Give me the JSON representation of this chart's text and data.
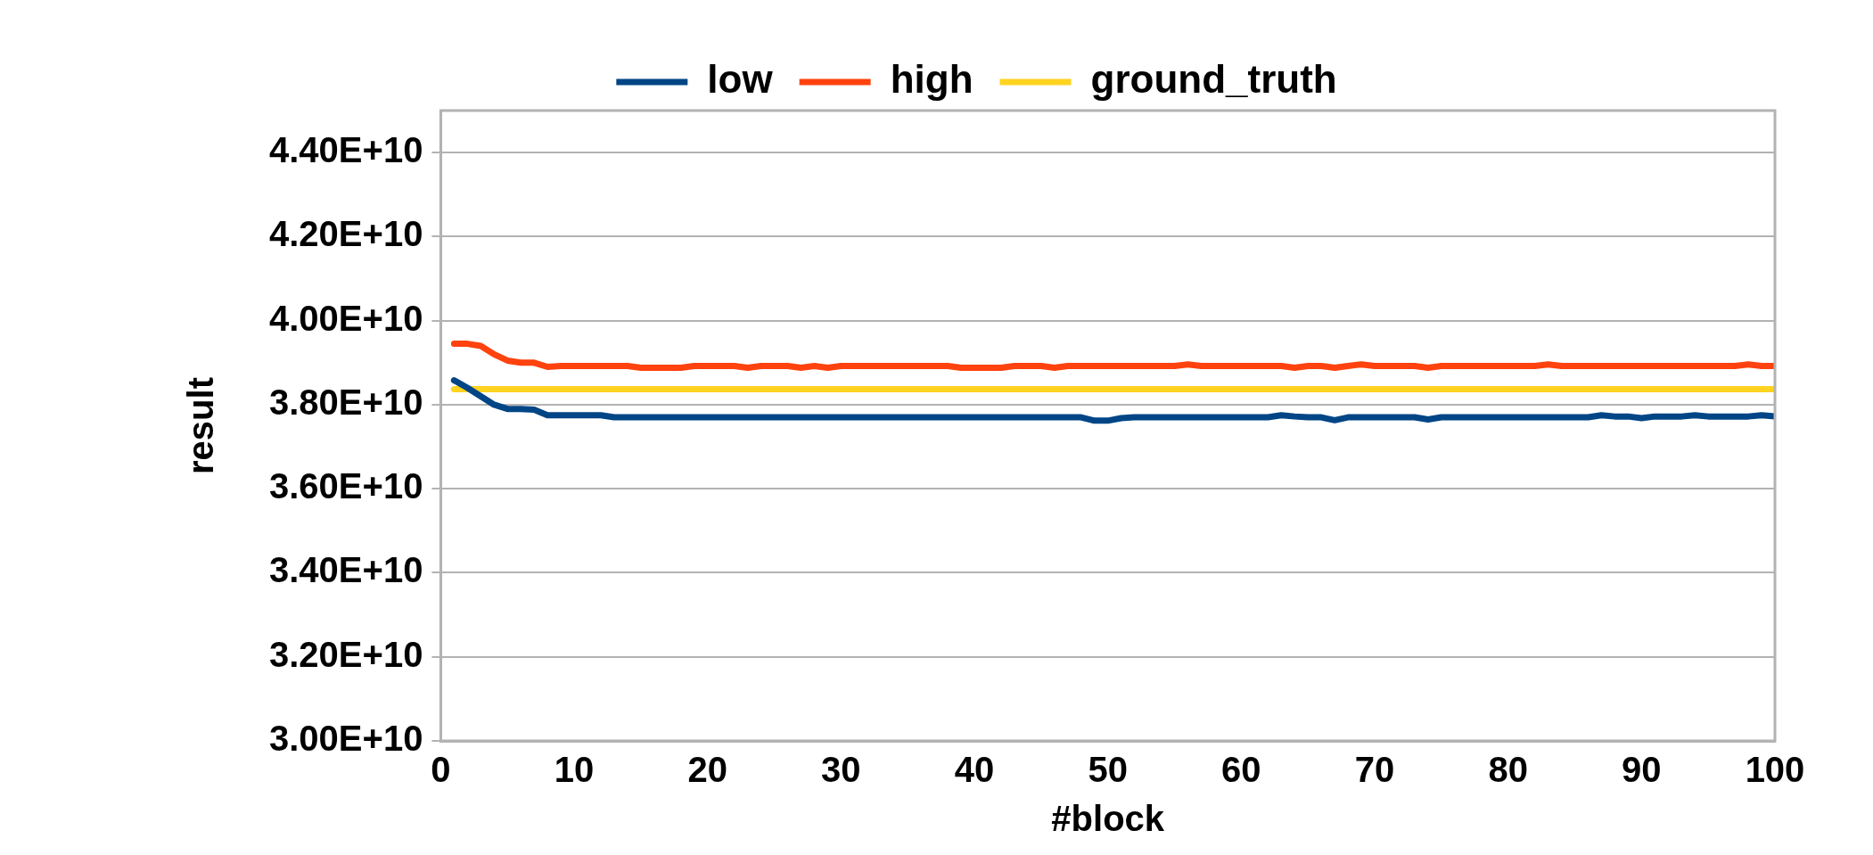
{
  "chart_data": {
    "type": "line",
    "xlabel": "#block",
    "ylabel": "result",
    "x": [
      1,
      2,
      3,
      4,
      5,
      6,
      7,
      8,
      9,
      10,
      11,
      12,
      13,
      14,
      15,
      16,
      17,
      18,
      19,
      20,
      21,
      22,
      23,
      24,
      25,
      26,
      27,
      28,
      29,
      30,
      31,
      32,
      33,
      34,
      35,
      36,
      37,
      38,
      39,
      40,
      41,
      42,
      43,
      44,
      45,
      46,
      47,
      48,
      49,
      50,
      51,
      52,
      53,
      54,
      55,
      56,
      57,
      58,
      59,
      60,
      61,
      62,
      63,
      64,
      65,
      66,
      67,
      68,
      69,
      70,
      71,
      72,
      73,
      74,
      75,
      76,
      77,
      78,
      79,
      80,
      81,
      82,
      83,
      84,
      85,
      86,
      87,
      88,
      89,
      90,
      91,
      92,
      93,
      94,
      95,
      96,
      97,
      98,
      99,
      100
    ],
    "series": [
      {
        "name": "low",
        "color": "#004586",
        "values": [
          38580000000.0,
          38400000000.0,
          38200000000.0,
          38000000000.0,
          37900000000.0,
          37900000000.0,
          37880000000.0,
          37750000000.0,
          37750000000.0,
          37750000000.0,
          37750000000.0,
          37750000000.0,
          37700000000.0,
          37700000000.0,
          37700000000.0,
          37700000000.0,
          37700000000.0,
          37700000000.0,
          37700000000.0,
          37700000000.0,
          37700000000.0,
          37700000000.0,
          37700000000.0,
          37700000000.0,
          37700000000.0,
          37700000000.0,
          37700000000.0,
          37700000000.0,
          37700000000.0,
          37700000000.0,
          37700000000.0,
          37700000000.0,
          37700000000.0,
          37700000000.0,
          37700000000.0,
          37700000000.0,
          37700000000.0,
          37700000000.0,
          37700000000.0,
          37700000000.0,
          37700000000.0,
          37700000000.0,
          37700000000.0,
          37700000000.0,
          37700000000.0,
          37700000000.0,
          37700000000.0,
          37700000000.0,
          37620000000.0,
          37620000000.0,
          37680000000.0,
          37700000000.0,
          37700000000.0,
          37700000000.0,
          37700000000.0,
          37700000000.0,
          37700000000.0,
          37700000000.0,
          37700000000.0,
          37700000000.0,
          37700000000.0,
          37700000000.0,
          37750000000.0,
          37720000000.0,
          37700000000.0,
          37700000000.0,
          37630000000.0,
          37700000000.0,
          37700000000.0,
          37700000000.0,
          37700000000.0,
          37700000000.0,
          37700000000.0,
          37650000000.0,
          37700000000.0,
          37700000000.0,
          37700000000.0,
          37700000000.0,
          37700000000.0,
          37700000000.0,
          37700000000.0,
          37700000000.0,
          37700000000.0,
          37700000000.0,
          37700000000.0,
          37700000000.0,
          37750000000.0,
          37720000000.0,
          37720000000.0,
          37680000000.0,
          37720000000.0,
          37720000000.0,
          37720000000.0,
          37750000000.0,
          37720000000.0,
          37720000000.0,
          37720000000.0,
          37720000000.0,
          37750000000.0,
          37720000000.0
        ]
      },
      {
        "name": "high",
        "color": "#ff420e",
        "values": [
          39450000000.0,
          39450000000.0,
          39400000000.0,
          39200000000.0,
          39050000000.0,
          39000000000.0,
          39000000000.0,
          38900000000.0,
          38920000000.0,
          38920000000.0,
          38920000000.0,
          38920000000.0,
          38920000000.0,
          38920000000.0,
          38880000000.0,
          38880000000.0,
          38880000000.0,
          38880000000.0,
          38920000000.0,
          38920000000.0,
          38920000000.0,
          38920000000.0,
          38880000000.0,
          38920000000.0,
          38920000000.0,
          38920000000.0,
          38880000000.0,
          38920000000.0,
          38880000000.0,
          38920000000.0,
          38920000000.0,
          38920000000.0,
          38920000000.0,
          38920000000.0,
          38920000000.0,
          38920000000.0,
          38920000000.0,
          38920000000.0,
          38880000000.0,
          38880000000.0,
          38880000000.0,
          38880000000.0,
          38920000000.0,
          38920000000.0,
          38920000000.0,
          38880000000.0,
          38920000000.0,
          38920000000.0,
          38920000000.0,
          38920000000.0,
          38920000000.0,
          38920000000.0,
          38920000000.0,
          38920000000.0,
          38920000000.0,
          38960000000.0,
          38920000000.0,
          38920000000.0,
          38920000000.0,
          38920000000.0,
          38920000000.0,
          38920000000.0,
          38920000000.0,
          38880000000.0,
          38920000000.0,
          38920000000.0,
          38880000000.0,
          38920000000.0,
          38960000000.0,
          38920000000.0,
          38920000000.0,
          38920000000.0,
          38920000000.0,
          38880000000.0,
          38920000000.0,
          38920000000.0,
          38920000000.0,
          38920000000.0,
          38920000000.0,
          38920000000.0,
          38920000000.0,
          38920000000.0,
          38960000000.0,
          38920000000.0,
          38920000000.0,
          38920000000.0,
          38920000000.0,
          38920000000.0,
          38920000000.0,
          38920000000.0,
          38920000000.0,
          38920000000.0,
          38920000000.0,
          38920000000.0,
          38920000000.0,
          38920000000.0,
          38920000000.0,
          38960000000.0,
          38920000000.0,
          38920000000.0
        ]
      },
      {
        "name": "ground_truth",
        "color": "#ffd320",
        "values": [
          38370000000.0,
          38370000000.0,
          38370000000.0,
          38370000000.0,
          38370000000.0,
          38370000000.0,
          38370000000.0,
          38370000000.0,
          38370000000.0,
          38370000000.0,
          38370000000.0,
          38370000000.0,
          38370000000.0,
          38370000000.0,
          38370000000.0,
          38370000000.0,
          38370000000.0,
          38370000000.0,
          38370000000.0,
          38370000000.0,
          38370000000.0,
          38370000000.0,
          38370000000.0,
          38370000000.0,
          38370000000.0,
          38370000000.0,
          38370000000.0,
          38370000000.0,
          38370000000.0,
          38370000000.0,
          38370000000.0,
          38370000000.0,
          38370000000.0,
          38370000000.0,
          38370000000.0,
          38370000000.0,
          38370000000.0,
          38370000000.0,
          38370000000.0,
          38370000000.0,
          38370000000.0,
          38370000000.0,
          38370000000.0,
          38370000000.0,
          38370000000.0,
          38370000000.0,
          38370000000.0,
          38370000000.0,
          38370000000.0,
          38370000000.0,
          38370000000.0,
          38370000000.0,
          38370000000.0,
          38370000000.0,
          38370000000.0,
          38370000000.0,
          38370000000.0,
          38370000000.0,
          38370000000.0,
          38370000000.0,
          38370000000.0,
          38370000000.0,
          38370000000.0,
          38370000000.0,
          38370000000.0,
          38370000000.0,
          38370000000.0,
          38370000000.0,
          38370000000.0,
          38370000000.0,
          38370000000.0,
          38370000000.0,
          38370000000.0,
          38370000000.0,
          38370000000.0,
          38370000000.0,
          38370000000.0,
          38370000000.0,
          38370000000.0,
          38370000000.0,
          38370000000.0,
          38370000000.0,
          38370000000.0,
          38370000000.0,
          38370000000.0,
          38370000000.0,
          38370000000.0,
          38370000000.0,
          38370000000.0,
          38370000000.0,
          38370000000.0,
          38370000000.0,
          38370000000.0,
          38370000000.0,
          38370000000.0,
          38370000000.0,
          38370000000.0,
          38370000000.0,
          38370000000.0,
          38370000000.0
        ]
      }
    ],
    "xlim": [
      0,
      100
    ],
    "xticks": [
      0,
      10,
      20,
      30,
      40,
      50,
      60,
      70,
      80,
      90,
      100
    ],
    "ylim": [
      30000000000.0,
      45000000000.0
    ],
    "yticks": [
      {
        "value": 30000000000.0,
        "label": "3.00E+10"
      },
      {
        "value": 32000000000.0,
        "label": "3.20E+10"
      },
      {
        "value": 34000000000.0,
        "label": "3.40E+10"
      },
      {
        "value": 36000000000.0,
        "label": "3.60E+10"
      },
      {
        "value": 38000000000.0,
        "label": "3.80E+10"
      },
      {
        "value": 40000000000.0,
        "label": "4.00E+10"
      },
      {
        "value": 42000000000.0,
        "label": "4.20E+10"
      },
      {
        "value": 44000000000.0,
        "label": "4.40E+10"
      }
    ],
    "grid": "y",
    "legend": "top",
    "marker": "none",
    "line_style": "solid"
  }
}
